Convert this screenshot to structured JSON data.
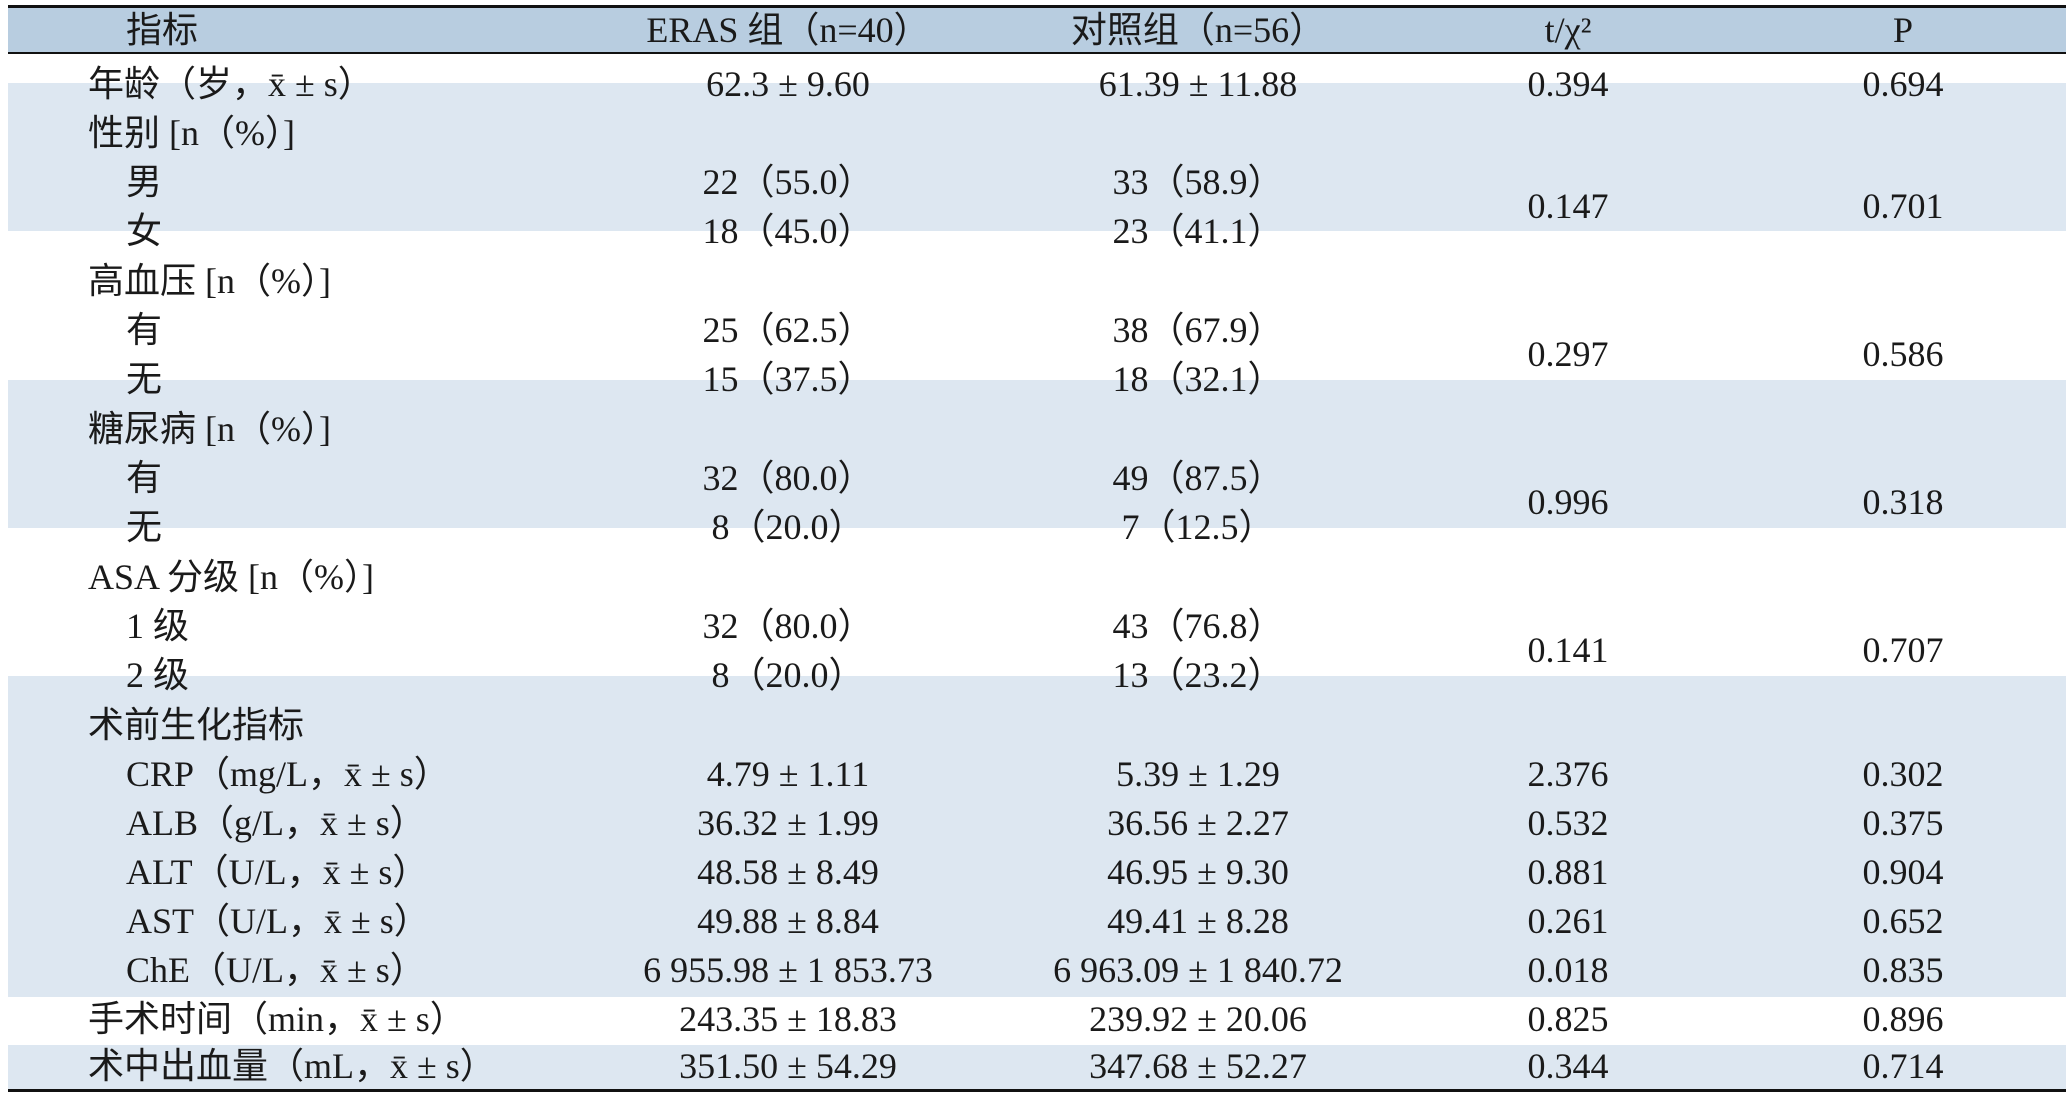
{
  "header": {
    "indicator": "指标",
    "eras": "ERAS 组（n=40）",
    "control": "对照组（n=56）",
    "t_chi": "t/χ²",
    "p": "P"
  },
  "rows": {
    "age": {
      "label": "年龄（岁，x̄ ± s）",
      "eras": "62.3 ± 9.60",
      "control": "61.39 ± 11.88",
      "t": "0.394",
      "p": "0.694"
    },
    "sex": {
      "label": "性别 [n（%）]",
      "t": "0.147",
      "p": "0.701",
      "male": {
        "label": "男",
        "eras": "22（55.0）",
        "control": "33（58.9）"
      },
      "female": {
        "label": "女",
        "eras": "18（45.0）",
        "control": "23（41.1）"
      }
    },
    "hypertension": {
      "label": "高血压 [n（%）]",
      "t": "0.297",
      "p": "0.586",
      "yes": {
        "label": "有",
        "eras": "25（62.5）",
        "control": "38（67.9）"
      },
      "no": {
        "label": "无",
        "eras": "15（37.5）",
        "control": "18（32.1）"
      }
    },
    "diabetes": {
      "label": "糖尿病 [n（%）]",
      "t": "0.996",
      "p": "0.318",
      "yes": {
        "label": "有",
        "eras": "32（80.0）",
        "control": "49（87.5）"
      },
      "no": {
        "label": "无",
        "eras": "8（20.0）",
        "control": "7（12.5）"
      }
    },
    "asa": {
      "label": "ASA 分级 [n（%）]",
      "t": "0.141",
      "p": "0.707",
      "grade1": {
        "label": "1 级",
        "eras": "32（80.0）",
        "control": "43（76.8）"
      },
      "grade2": {
        "label": "2 级",
        "eras": "8（20.0）",
        "control": "13（23.2）"
      }
    },
    "biochem": {
      "label": "术前生化指标",
      "crp": {
        "label": "CRP（mg/L，x̄ ± s）",
        "eras": "4.79 ± 1.11",
        "control": "5.39 ± 1.29",
        "t": "2.376",
        "p": "0.302"
      },
      "alb": {
        "label": "ALB（g/L，x̄ ± s）",
        "eras": "36.32 ± 1.99",
        "control": "36.56 ± 2.27",
        "t": "0.532",
        "p": "0.375"
      },
      "alt": {
        "label": "ALT（U/L，x̄ ± s）",
        "eras": "48.58 ± 8.49",
        "control": "46.95 ± 9.30",
        "t": "0.881",
        "p": "0.904"
      },
      "ast": {
        "label": "AST（U/L，x̄ ± s）",
        "eras": "49.88 ± 8.84",
        "control": "49.41 ± 8.28",
        "t": "0.261",
        "p": "0.652"
      },
      "che": {
        "label": "ChE（U/L，x̄ ± s）",
        "eras": "6 955.98 ± 1 853.73",
        "control": "6 963.09 ± 1 840.72",
        "t": "0.018",
        "p": "0.835"
      }
    },
    "op_time": {
      "label": "手术时间（min，x̄ ± s）",
      "eras": "243.35 ± 18.83",
      "control": "239.92 ± 20.06",
      "t": "0.825",
      "p": "0.896"
    },
    "blood_loss": {
      "label": "术中出血量（mL，x̄ ± s）",
      "eras": "351.50 ± 54.29",
      "control": "347.68 ± 52.27",
      "t": "0.344",
      "p": "0.714"
    }
  },
  "colors": {
    "header_bg": "#b8cde0",
    "band_bg": "#dde7f1",
    "rule": "#111111"
  }
}
